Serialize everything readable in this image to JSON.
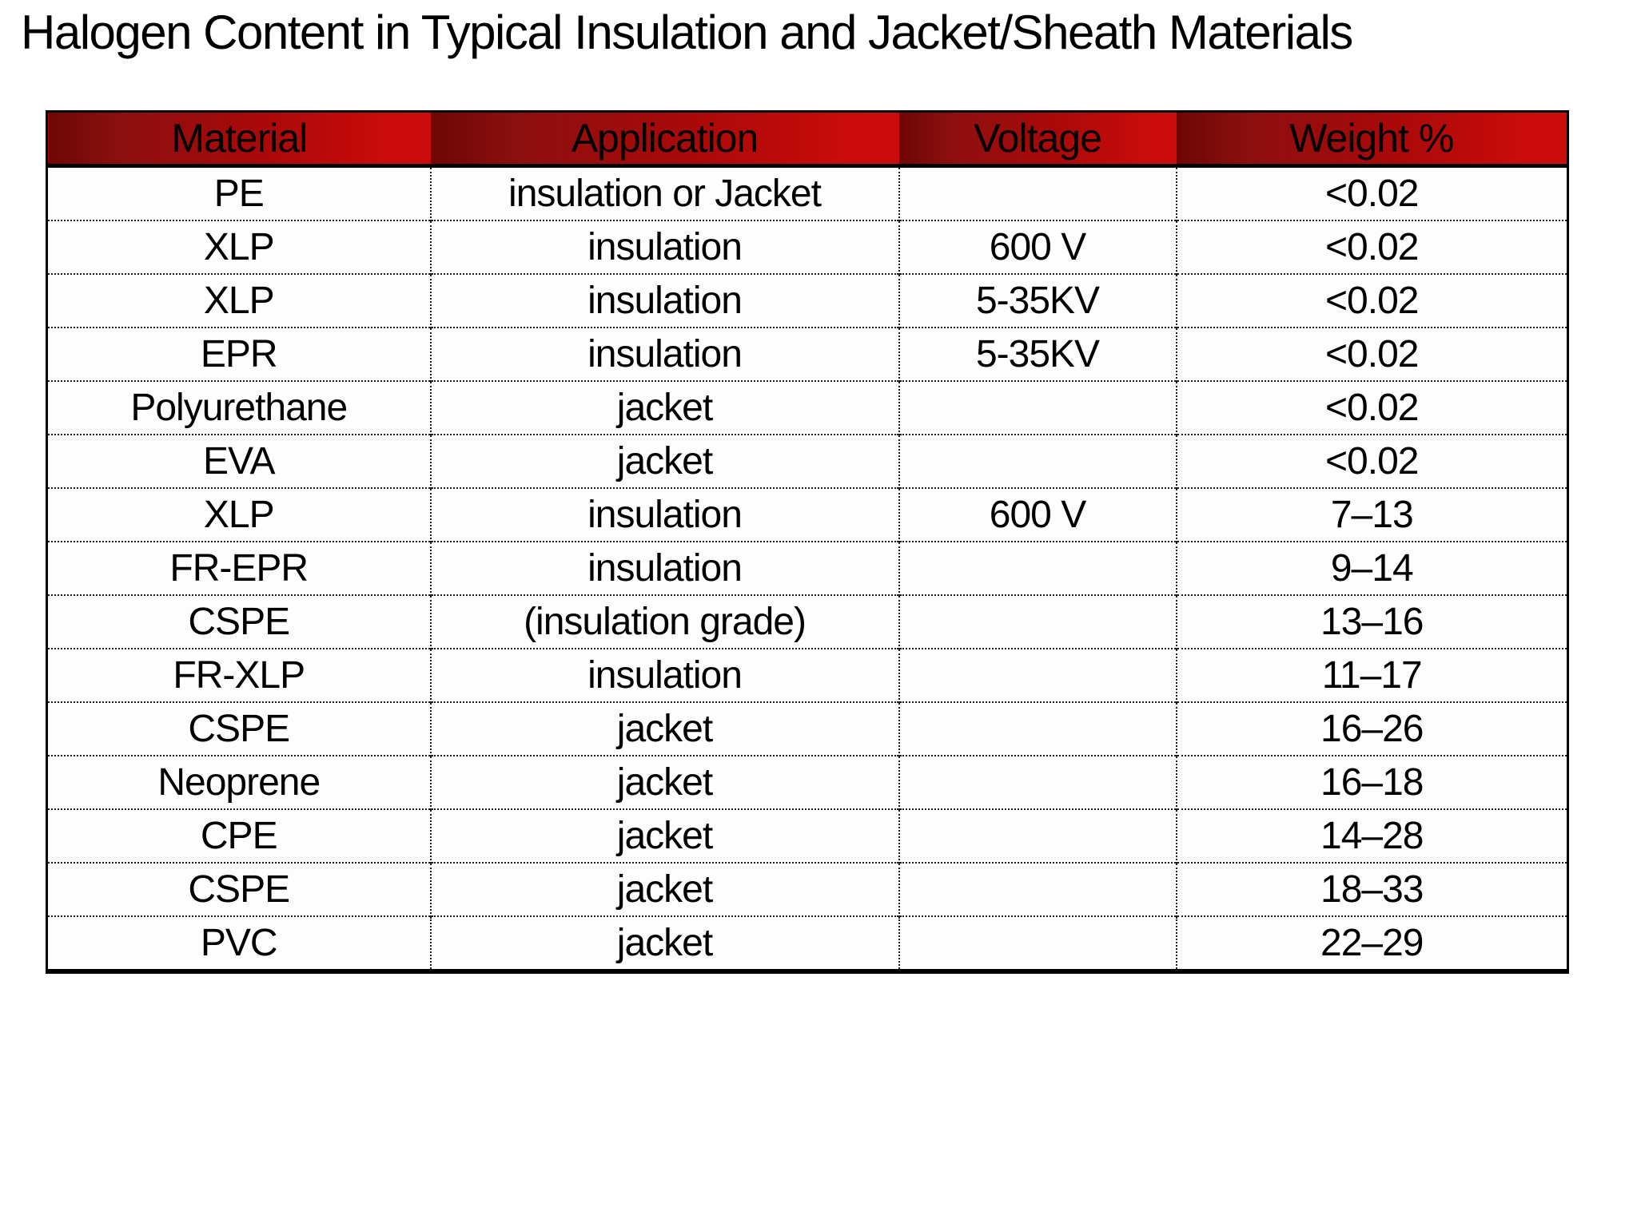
{
  "title": "Halogen Content in Typical Insulation and Jacket/Sheath Materials",
  "table": {
    "columns": [
      {
        "key": "material",
        "label": "Material"
      },
      {
        "key": "application",
        "label": "Application"
      },
      {
        "key": "voltage",
        "label": "Voltage"
      },
      {
        "key": "weight",
        "label": "Weight %"
      }
    ],
    "rows": [
      {
        "material": "PE",
        "application": "insulation or Jacket",
        "voltage": "",
        "weight": "<0.02"
      },
      {
        "material": "XLP",
        "application": "insulation",
        "voltage": "600 V",
        "weight": "<0.02"
      },
      {
        "material": "XLP",
        "application": "insulation",
        "voltage": "5-35KV",
        "weight": "<0.02"
      },
      {
        "material": "EPR",
        "application": "insulation",
        "voltage": "5-35KV",
        "weight": "<0.02"
      },
      {
        "material": "Polyurethane",
        "application": "jacket",
        "voltage": "",
        "weight": "<0.02"
      },
      {
        "material": "EVA",
        "application": "jacket",
        "voltage": "",
        "weight": "<0.02"
      },
      {
        "material": "XLP",
        "application": "insulation",
        "voltage": "600 V",
        "weight": "7–13"
      },
      {
        "material": "FR-EPR",
        "application": "insulation",
        "voltage": "",
        "weight": "9–14"
      },
      {
        "material": "CSPE",
        "application": "(insulation grade)",
        "voltage": "",
        "weight": "13–16"
      },
      {
        "material": "FR-XLP",
        "application": "insulation",
        "voltage": "",
        "weight": "11–17"
      },
      {
        "material": "CSPE",
        "application": "jacket",
        "voltage": "",
        "weight": "16–26"
      },
      {
        "material": "Neoprene",
        "application": "jacket",
        "voltage": "",
        "weight": "16–18"
      },
      {
        "material": "CPE",
        "application": "jacket",
        "voltage": "",
        "weight": "14–28"
      },
      {
        "material": "CSPE",
        "application": "jacket",
        "voltage": "",
        "weight": "18–33"
      },
      {
        "material": "PVC",
        "application": "jacket",
        "voltage": "",
        "weight": "22–29"
      }
    ]
  },
  "colors": {
    "header_gradient_dark": "#6e0606",
    "header_gradient_bright": "#cb0c0c",
    "border": "#000000",
    "row_separator": "#1c1c1c",
    "background": "#ffffff",
    "text": "#000000"
  }
}
